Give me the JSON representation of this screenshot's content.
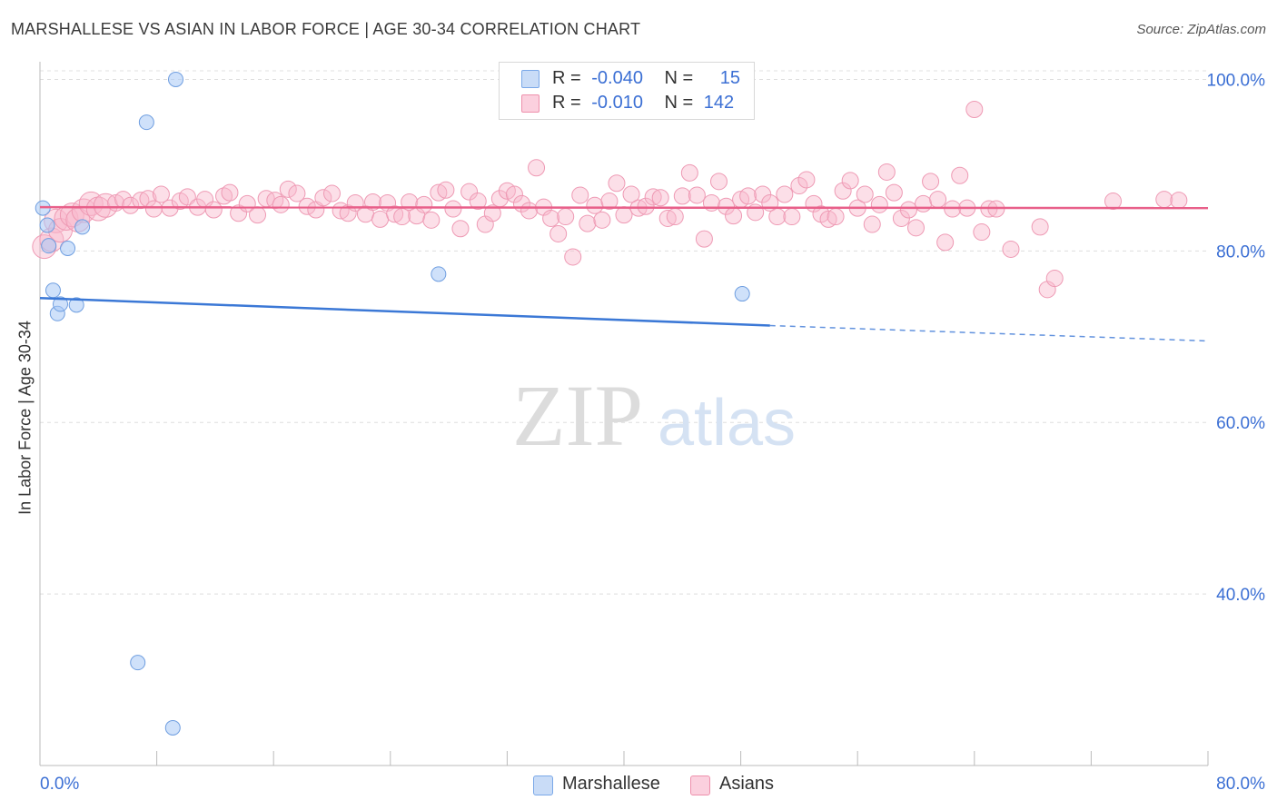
{
  "header": {
    "title": "MARSHALLESE VS ASIAN IN LABOR FORCE | AGE 30-34 CORRELATION CHART",
    "source": "Source: ZipAtlas.com"
  },
  "watermark": {
    "zip": "ZIP",
    "atlas": "atlas"
  },
  "legend": {
    "rows": [
      {
        "r_label": "R =",
        "r_value": "-0.040",
        "n_label": "N =",
        "n_value": "15",
        "color": "#a8c8f5",
        "border": "#7aa8e8"
      },
      {
        "r_label": "R =",
        "r_value": "-0.010",
        "n_label": "N =",
        "n_value": "142",
        "color": "#f8b8cc",
        "border": "#ee90ac"
      }
    ]
  },
  "bottom_legend": {
    "marshallese": "Marshallese",
    "asians": "Asians"
  },
  "chart_data": {
    "type": "scatter",
    "title": "MARSHALLESE VS ASIAN IN LABOR FORCE | AGE 30-34 CORRELATION CHART",
    "xlabel": "",
    "ylabel": "In Labor Force | Age 30-34",
    "xlim": [
      0,
      80
    ],
    "ylim": [
      20,
      101
    ],
    "x_ticks_labels": [
      "0.0%",
      "80.0%"
    ],
    "y_ticks": [
      40,
      60,
      80,
      100
    ],
    "y_ticks_labels": [
      "40.0%",
      "60.0%",
      "80.0%",
      "100.0%"
    ],
    "grid": true,
    "legend_position": "top-center",
    "colors": {
      "marshallese": "#3b78d6",
      "asians": "#e8608a",
      "axis_text": "#3b6fd4"
    },
    "series": [
      {
        "name": "Marshallese",
        "color": "#a8c8f5",
        "points": [
          [
            0.2,
            85.0
          ],
          [
            0.5,
            83.0
          ],
          [
            0.6,
            80.6
          ],
          [
            0.9,
            75.4
          ],
          [
            1.2,
            72.7
          ],
          [
            1.4,
            73.8
          ],
          [
            1.9,
            80.3
          ],
          [
            2.5,
            73.7
          ],
          [
            2.9,
            82.8
          ],
          [
            6.7,
            32.0
          ],
          [
            7.3,
            95.0
          ],
          [
            9.1,
            24.4
          ],
          [
            9.3,
            100.0
          ],
          [
            27.3,
            77.3
          ],
          [
            48.1,
            75.0
          ]
        ],
        "trend": {
          "x0": 0,
          "y0": 74.5,
          "x1": 50,
          "y1": 71.3,
          "dash_to_x": 80,
          "dash_to_y": 69.5
        }
      },
      {
        "name": "Asians",
        "color": "#f8b8cc",
        "points": [
          [
            0.3,
            80.5
          ],
          [
            0.8,
            81.3
          ],
          [
            1.1,
            83.5
          ],
          [
            1.4,
            82.4
          ],
          [
            1.8,
            83.8
          ],
          [
            2.2,
            84.2
          ],
          [
            2.6,
            83.6
          ],
          [
            3.0,
            84.7
          ],
          [
            3.5,
            85.5
          ],
          [
            4.0,
            84.9
          ],
          [
            4.5,
            85.3
          ],
          [
            5.2,
            85.6
          ],
          [
            5.7,
            86.0
          ],
          [
            6.2,
            85.3
          ],
          [
            6.9,
            85.9
          ],
          [
            7.4,
            86.1
          ],
          [
            7.8,
            84.9
          ],
          [
            8.3,
            86.6
          ],
          [
            8.9,
            85.0
          ],
          [
            9.6,
            85.8
          ],
          [
            10.1,
            86.3
          ],
          [
            10.8,
            85.1
          ],
          [
            11.3,
            86.0
          ],
          [
            11.9,
            84.8
          ],
          [
            12.6,
            86.4
          ],
          [
            13.0,
            86.8
          ],
          [
            13.6,
            84.4
          ],
          [
            14.2,
            85.5
          ],
          [
            14.9,
            84.2
          ],
          [
            15.5,
            86.1
          ],
          [
            16.1,
            85.9
          ],
          [
            16.5,
            85.4
          ],
          [
            17.0,
            87.2
          ],
          [
            17.6,
            86.7
          ],
          [
            18.3,
            85.2
          ],
          [
            18.9,
            84.8
          ],
          [
            19.4,
            86.2
          ],
          [
            20.0,
            86.7
          ],
          [
            20.6,
            84.7
          ],
          [
            21.1,
            84.4
          ],
          [
            21.6,
            85.6
          ],
          [
            22.3,
            84.3
          ],
          [
            22.8,
            85.7
          ],
          [
            23.3,
            83.7
          ],
          [
            23.8,
            85.6
          ],
          [
            24.3,
            84.3
          ],
          [
            24.8,
            84.0
          ],
          [
            25.3,
            85.7
          ],
          [
            25.8,
            84.1
          ],
          [
            26.3,
            85.4
          ],
          [
            26.8,
            83.6
          ],
          [
            27.3,
            86.8
          ],
          [
            27.8,
            87.1
          ],
          [
            28.3,
            84.9
          ],
          [
            28.8,
            82.6
          ],
          [
            29.4,
            86.9
          ],
          [
            30.0,
            85.8
          ],
          [
            30.5,
            83.1
          ],
          [
            31.0,
            84.4
          ],
          [
            31.5,
            86.1
          ],
          [
            32.0,
            87.0
          ],
          [
            32.5,
            86.6
          ],
          [
            33.0,
            85.5
          ],
          [
            33.5,
            84.7
          ],
          [
            34.0,
            89.7
          ],
          [
            34.5,
            85.1
          ],
          [
            35.0,
            83.8
          ],
          [
            35.5,
            82.0
          ],
          [
            36.0,
            84.0
          ],
          [
            36.5,
            79.3
          ],
          [
            37.0,
            86.5
          ],
          [
            37.5,
            83.2
          ],
          [
            38.0,
            85.3
          ],
          [
            38.5,
            83.6
          ],
          [
            39.0,
            85.8
          ],
          [
            39.5,
            87.9
          ],
          [
            40.0,
            84.2
          ],
          [
            40.5,
            86.6
          ],
          [
            41.0,
            85.0
          ],
          [
            41.5,
            85.2
          ],
          [
            42.0,
            86.3
          ],
          [
            42.5,
            86.2
          ],
          [
            43.0,
            83.8
          ],
          [
            43.5,
            84.0
          ],
          [
            44.0,
            86.4
          ],
          [
            44.5,
            89.1
          ],
          [
            45.0,
            86.5
          ],
          [
            45.5,
            81.4
          ],
          [
            46.0,
            85.6
          ],
          [
            46.5,
            88.1
          ],
          [
            47.0,
            85.2
          ],
          [
            47.5,
            84.1
          ],
          [
            48.0,
            86.0
          ],
          [
            48.5,
            86.4
          ],
          [
            49.0,
            84.5
          ],
          [
            49.5,
            86.6
          ],
          [
            50.0,
            85.6
          ],
          [
            50.5,
            84.0
          ],
          [
            51.0,
            86.6
          ],
          [
            51.5,
            84.0
          ],
          [
            52.0,
            87.6
          ],
          [
            52.5,
            88.3
          ],
          [
            53.0,
            85.5
          ],
          [
            53.5,
            84.3
          ],
          [
            54.0,
            83.7
          ],
          [
            54.5,
            84.0
          ],
          [
            55.0,
            87.0
          ],
          [
            55.5,
            88.2
          ],
          [
            56.0,
            85.0
          ],
          [
            56.5,
            86.6
          ],
          [
            57.0,
            83.1
          ],
          [
            57.5,
            85.4
          ],
          [
            58.0,
            89.2
          ],
          [
            58.5,
            86.8
          ],
          [
            59.0,
            83.8
          ],
          [
            59.5,
            84.8
          ],
          [
            60.0,
            82.7
          ],
          [
            60.5,
            85.5
          ],
          [
            61.0,
            88.1
          ],
          [
            61.5,
            86.0
          ],
          [
            62.0,
            81.0
          ],
          [
            62.5,
            84.9
          ],
          [
            63.0,
            88.8
          ],
          [
            63.5,
            85.0
          ],
          [
            64.0,
            96.5
          ],
          [
            64.5,
            82.2
          ],
          [
            65.0,
            84.9
          ],
          [
            65.5,
            84.9
          ],
          [
            66.5,
            80.2
          ],
          [
            68.5,
            82.8
          ],
          [
            69.0,
            75.5
          ],
          [
            69.5,
            76.8
          ],
          [
            73.5,
            85.8
          ],
          [
            77.0,
            86.0
          ],
          [
            78.0,
            85.9
          ]
        ],
        "trend": {
          "x0": 0,
          "y0": 85.1,
          "x1": 80,
          "y1": 85.0
        }
      }
    ]
  }
}
